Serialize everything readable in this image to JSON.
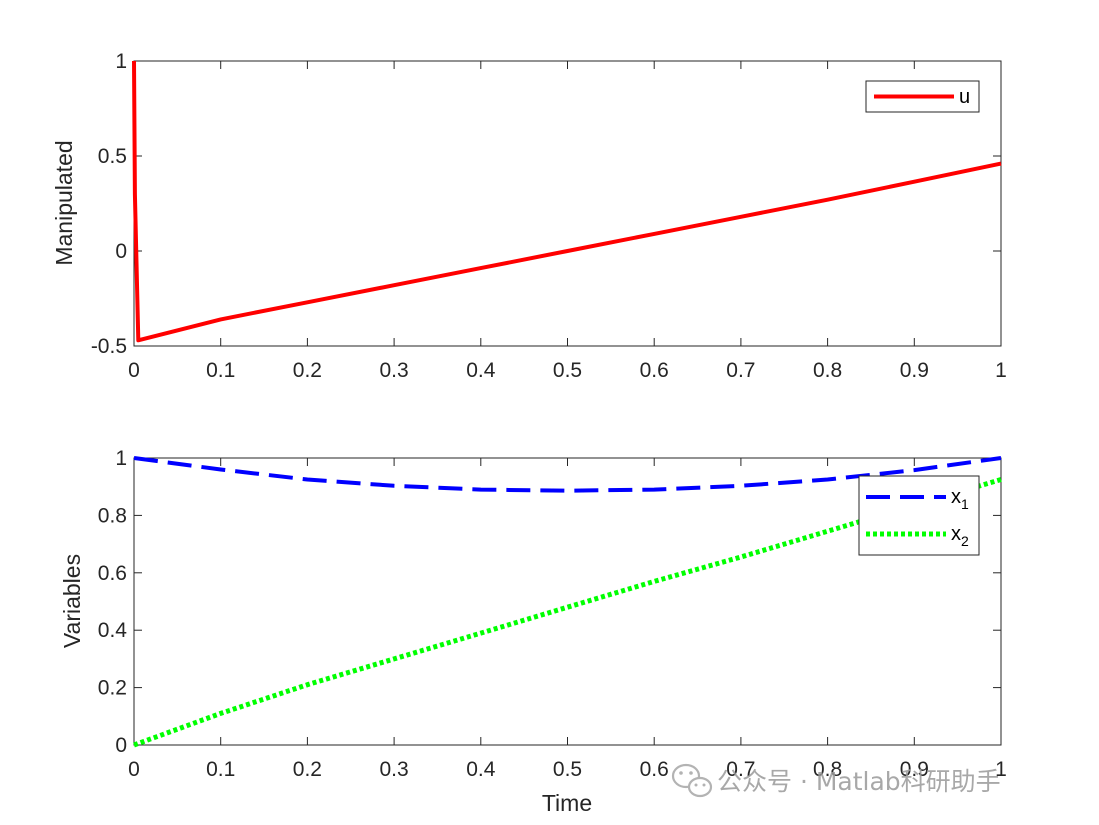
{
  "chart_data": [
    {
      "type": "line",
      "ylabel": "Manipulated",
      "xlabel": "",
      "xlim": [
        0,
        1
      ],
      "ylim": [
        -0.5,
        1
      ],
      "xticks": [
        "0",
        "0.1",
        "0.2",
        "0.3",
        "0.4",
        "0.5",
        "0.6",
        "0.7",
        "0.8",
        "0.9",
        "1"
      ],
      "yticks": [
        "-0.5",
        "0",
        "0.5",
        "1"
      ],
      "legend_position": "top-right",
      "series": [
        {
          "name": "u",
          "color": "#ff0000",
          "style": "solid",
          "x": [
            0,
            0.001,
            0.005,
            0.1,
            0.2,
            0.3,
            0.4,
            0.5,
            0.6,
            0.7,
            0.8,
            0.9,
            1.0
          ],
          "y": [
            1.0,
            0.3,
            -0.47,
            -0.36,
            -0.27,
            -0.18,
            -0.09,
            0.0,
            0.09,
            0.18,
            0.27,
            0.365,
            0.46
          ]
        }
      ]
    },
    {
      "type": "line",
      "ylabel": "Variables",
      "xlabel": "Time",
      "xlim": [
        0,
        1
      ],
      "ylim": [
        0,
        1
      ],
      "xticks": [
        "0",
        "0.1",
        "0.2",
        "0.3",
        "0.4",
        "0.5",
        "0.6",
        "0.7",
        "0.8",
        "0.9",
        "1"
      ],
      "yticks": [
        "0",
        "0.2",
        "0.4",
        "0.6",
        "0.8",
        "1"
      ],
      "legend_position": "top-right",
      "series": [
        {
          "name": "x",
          "subscript": "1",
          "color": "#0000ff",
          "style": "dashed",
          "x": [
            0,
            0.1,
            0.2,
            0.3,
            0.4,
            0.5,
            0.6,
            0.7,
            0.8,
            0.9,
            1.0
          ],
          "y": [
            1.0,
            0.96,
            0.925,
            0.903,
            0.89,
            0.886,
            0.89,
            0.903,
            0.925,
            0.958,
            1.0
          ]
        },
        {
          "name": "x",
          "subscript": "2",
          "color": "#00ff00",
          "style": "dotted",
          "x": [
            0,
            0.1,
            0.2,
            0.3,
            0.4,
            0.5,
            0.6,
            0.7,
            0.8,
            0.9,
            1.0
          ],
          "y": [
            0.0,
            0.11,
            0.21,
            0.3,
            0.39,
            0.48,
            0.57,
            0.655,
            0.745,
            0.835,
            0.925
          ]
        }
      ]
    }
  ],
  "watermark": {
    "text": "公众号 · Matlab科研助手",
    "icon": "wechat-icon"
  }
}
